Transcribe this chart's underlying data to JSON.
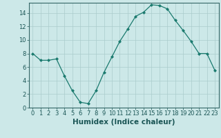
{
  "x": [
    0,
    1,
    2,
    3,
    4,
    5,
    6,
    7,
    8,
    9,
    10,
    11,
    12,
    13,
    14,
    15,
    16,
    17,
    18,
    19,
    20,
    21,
    22,
    23
  ],
  "y": [
    8,
    7,
    7,
    7.2,
    4.7,
    2.5,
    0.8,
    0.6,
    2.5,
    5.2,
    7.5,
    9.8,
    11.6,
    13.5,
    14.1,
    15.2,
    15.1,
    14.6,
    12.9,
    11.4,
    9.8,
    8.0,
    8.0,
    5.5
  ],
  "line_color": "#1a7a6e",
  "marker": "D",
  "marker_size": 2,
  "bg_color": "#cce8e8",
  "grid_color": "#aacccc",
  "xlabel": "Humidex (Indice chaleur)",
  "xlabel_fontsize": 7.5,
  "ylim": [
    0,
    15.5
  ],
  "xlim": [
    -0.5,
    23.5
  ],
  "yticks": [
    0,
    2,
    4,
    6,
    8,
    10,
    12,
    14
  ],
  "xticks": [
    0,
    1,
    2,
    3,
    4,
    5,
    6,
    7,
    8,
    9,
    10,
    11,
    12,
    13,
    14,
    15,
    16,
    17,
    18,
    19,
    20,
    21,
    22,
    23
  ],
  "tick_fontsize": 6,
  "spine_color": "#336666",
  "text_color": "#1a5555"
}
